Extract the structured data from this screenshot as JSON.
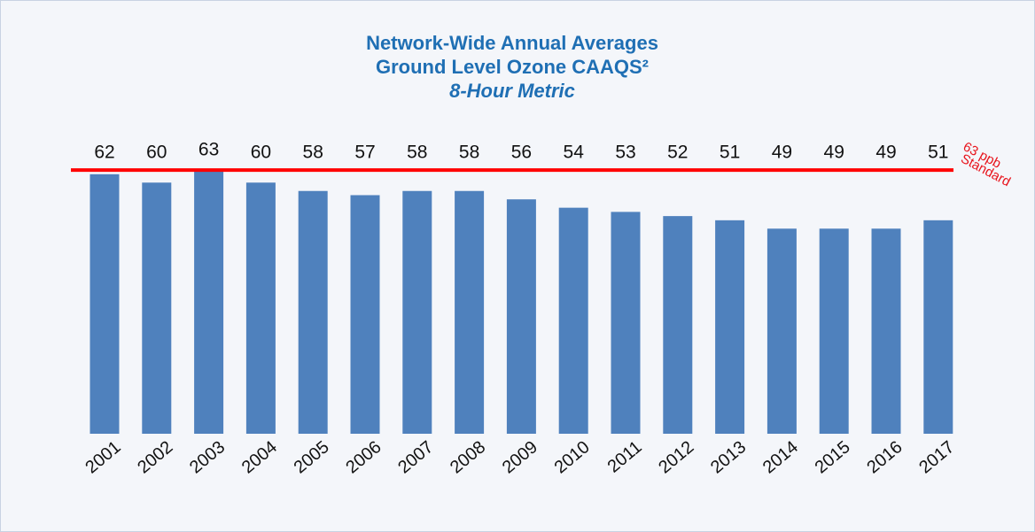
{
  "chart_data": {
    "type": "bar",
    "title": [
      "Network-Wide Annual Averages",
      "Ground Level Ozone CAAQS²"
    ],
    "subtitle": "8-Hour Metric",
    "categories": [
      "2001",
      "2002",
      "2003",
      "2004",
      "2005",
      "2006",
      "2007",
      "2008",
      "2009",
      "2010",
      "2011",
      "2012",
      "2013",
      "2014",
      "2015",
      "2016",
      "2017"
    ],
    "values": [
      62,
      60,
      63,
      60,
      58,
      57,
      58,
      58,
      56,
      54,
      53,
      52,
      51,
      49,
      49,
      49,
      51
    ],
    "color": "#4f81bd",
    "ylim": [
      0,
      70
    ],
    "reference": {
      "value": 63,
      "color": "#ff0000",
      "label": [
        "63 ppb",
        "Standard"
      ]
    }
  }
}
